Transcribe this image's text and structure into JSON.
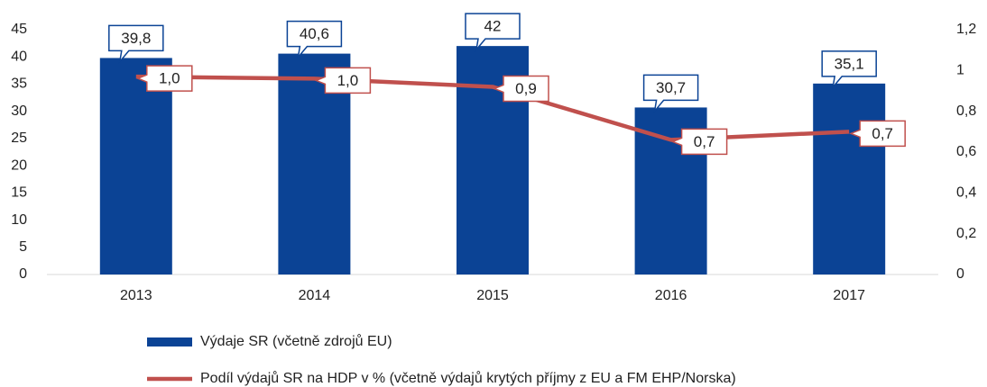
{
  "chart_data": {
    "type": "bar",
    "categories": [
      "2013",
      "2014",
      "2015",
      "2016",
      "2017"
    ],
    "series": [
      {
        "name": "Výdaje SR (včetně zdrojů EU)",
        "type": "bar",
        "color": "#0b4395",
        "values": [
          39.8,
          40.6,
          42,
          30.7,
          35.1
        ],
        "value_labels": [
          "39,8",
          "40,6",
          "42",
          "30,7",
          "35,1"
        ]
      },
      {
        "name": "Podíl výdajů SR na HDP v % (včetně výdajů krytých příjmy z EU a FM EHP/Norska)",
        "type": "line",
        "axis": "y2",
        "color": "#c0504d",
        "values": [
          0.97,
          0.96,
          0.92,
          0.66,
          0.7
        ],
        "value_labels": [
          "1,0",
          "1,0",
          "0,9",
          "0,7",
          "0,7"
        ]
      }
    ],
    "ylim": [
      0,
      45
    ],
    "yticks": [
      0,
      5,
      10,
      15,
      20,
      25,
      30,
      35,
      40,
      45
    ],
    "y2lim": [
      0,
      1.2
    ],
    "y2ticks": [
      0,
      {
        "value": 0.2,
        "label": "0,2"
      },
      {
        "value": 0.4,
        "label": "0,4"
      },
      {
        "value": 0.6,
        "label": "0,6"
      },
      {
        "value": 0.8,
        "label": "0,8"
      },
      1,
      {
        "value": 1.2,
        "label": "1,2"
      }
    ]
  }
}
